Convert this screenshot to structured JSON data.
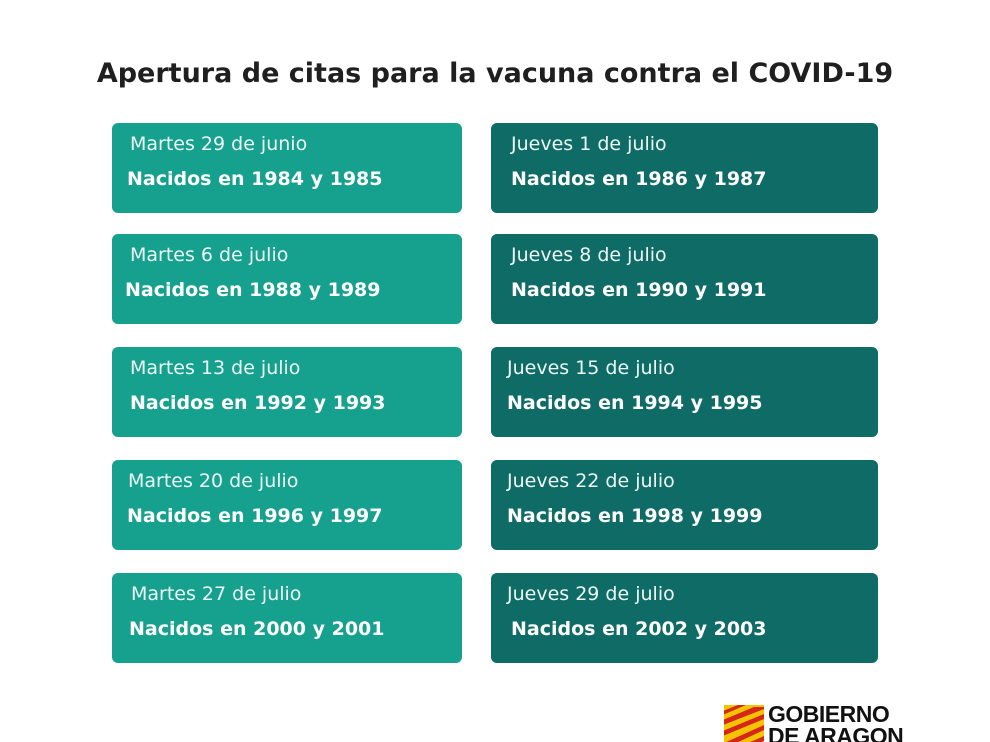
{
  "title": "Apertura de citas para la vacuna contra el COVID-19",
  "colors": {
    "martes_card": "#16a08e",
    "jueves_card": "#0f6b66"
  },
  "schedule": [
    {
      "date": "Martes 29 de junio",
      "born": "Nacidos en 1984 y 1985"
    },
    {
      "date": "Jueves 1 de julio",
      "born": "Nacidos en 1986 y 1987"
    },
    {
      "date": "Martes 6 de julio",
      "born": "Nacidos en 1988 y 1989"
    },
    {
      "date": "Jueves 8 de julio",
      "born": "Nacidos en 1990 y 1991"
    },
    {
      "date": "Martes 13 de julio",
      "born": "Nacidos en 1992 y 1993"
    },
    {
      "date": "Jueves 15 de julio",
      "born": "Nacidos en 1994 y 1995"
    },
    {
      "date": "Martes 20 de julio",
      "born": "Nacidos en 1996 y 1997"
    },
    {
      "date": "Jueves 22 de julio",
      "born": "Nacidos en 1998 y 1999"
    },
    {
      "date": "Martes 27 de julio",
      "born": "Nacidos en 2000 y 2001"
    },
    {
      "date": "Jueves 29 de julio",
      "born": "Nacidos en 2002 y 2003"
    }
  ],
  "logo": {
    "line1": "GOBIERNO",
    "line2": "DE ARAGON",
    "icon": "aragon-flag-icon"
  }
}
